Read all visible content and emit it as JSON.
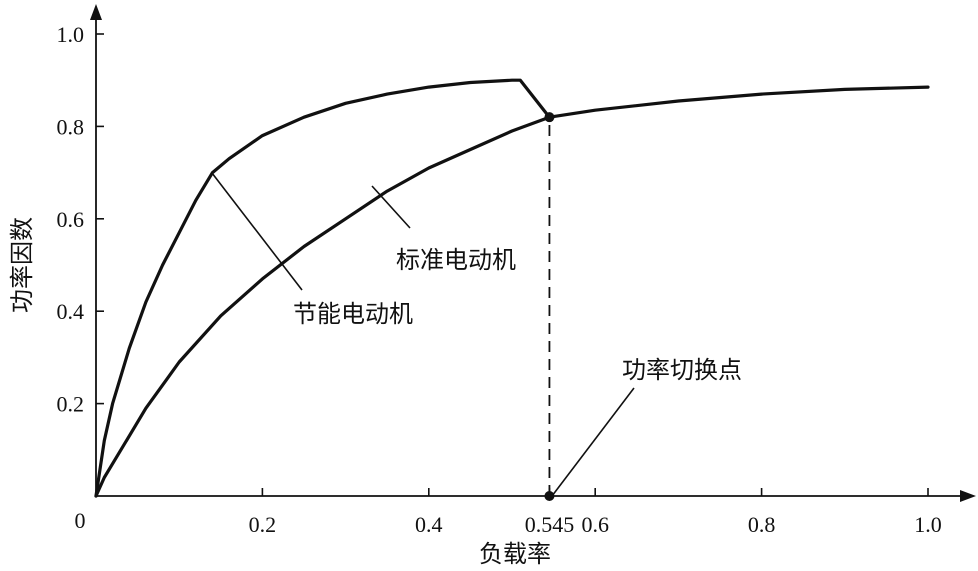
{
  "chart_data": {
    "type": "line",
    "title": "",
    "xlabel": "负载率",
    "ylabel": "功率因数",
    "xlim": [
      0,
      1.0
    ],
    "ylim": [
      0,
      1.0
    ],
    "origin_label": "0",
    "x_ticks": [
      {
        "value": 0.2,
        "label": "0.2"
      },
      {
        "value": 0.4,
        "label": "0.4"
      },
      {
        "value": 0.545,
        "label": "0.545"
      },
      {
        "value": 0.6,
        "label": "0.6"
      },
      {
        "value": 0.8,
        "label": "0.8"
      },
      {
        "value": 1.0,
        "label": "1.0"
      }
    ],
    "y_ticks": [
      {
        "value": 0.2,
        "label": "0.2"
      },
      {
        "value": 0.4,
        "label": "0.4"
      },
      {
        "value": 0.6,
        "label": "0.6"
      },
      {
        "value": 0.8,
        "label": "0.8"
      },
      {
        "value": 1.0,
        "label": "1.0"
      }
    ],
    "grid": false,
    "series": [
      {
        "name": "节能电动机",
        "x": [
          0,
          0.01,
          0.02,
          0.04,
          0.06,
          0.08,
          0.1,
          0.12,
          0.14,
          0.16,
          0.2,
          0.25,
          0.3,
          0.35,
          0.4,
          0.45,
          0.5,
          0.51,
          0.545
        ],
        "y": [
          0,
          0.12,
          0.2,
          0.32,
          0.42,
          0.5,
          0.57,
          0.64,
          0.7,
          0.73,
          0.78,
          0.82,
          0.85,
          0.87,
          0.885,
          0.895,
          0.9,
          0.9,
          0.82
        ]
      },
      {
        "name": "标准电动机",
        "x": [
          0,
          0.01,
          0.02,
          0.04,
          0.06,
          0.08,
          0.1,
          0.15,
          0.2,
          0.25,
          0.3,
          0.35,
          0.4,
          0.45,
          0.5,
          0.545,
          0.6,
          0.7,
          0.8,
          0.9,
          1.0
        ],
        "y": [
          0,
          0.04,
          0.07,
          0.13,
          0.19,
          0.24,
          0.29,
          0.39,
          0.47,
          0.54,
          0.6,
          0.66,
          0.71,
          0.75,
          0.79,
          0.82,
          0.835,
          0.855,
          0.87,
          0.88,
          0.885
        ]
      }
    ],
    "markers": [
      {
        "x": 0.545,
        "y": 0.82
      },
      {
        "x": 0.545,
        "y": 0
      }
    ],
    "dashed_guide": {
      "x": 0.545,
      "y_from": 0,
      "y_to": 0.82
    },
    "annotations": [
      {
        "text": "节能电动机",
        "point": {
          "x": 0.14,
          "y": 0.7
        }
      },
      {
        "text": "标准电动机",
        "point": {
          "x": 0.33,
          "y": 0.64
        }
      },
      {
        "text": "功率切换点",
        "point": {
          "x": 0.545,
          "y": 0
        }
      }
    ]
  }
}
